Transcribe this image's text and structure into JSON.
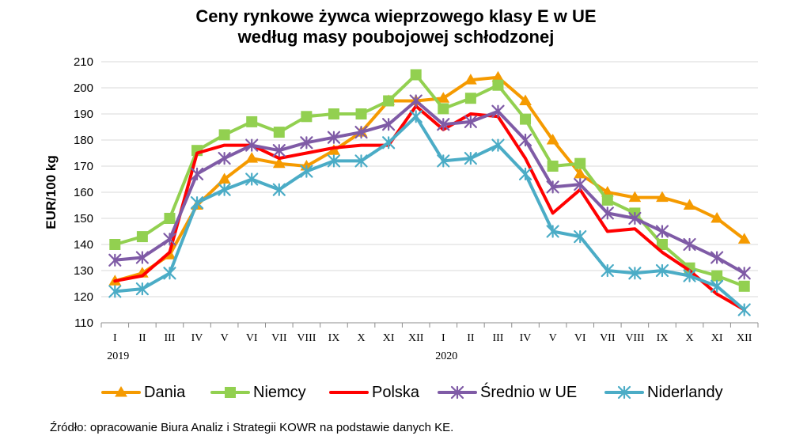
{
  "chart_data": {
    "type": "line",
    "title_line1": "Ceny rynkowe żywca wieprzowego klasy E w UE",
    "title_line2": "według masy poubojowej schłodzonej",
    "ylabel": "EUR/100 kg",
    "xlabel": "",
    "ylim": [
      110,
      210
    ],
    "yticks": [
      110,
      120,
      130,
      140,
      150,
      160,
      170,
      180,
      190,
      200,
      210
    ],
    "categories": [
      "I",
      "II",
      "III",
      "IV",
      "V",
      "VI",
      "VII",
      "VIII",
      "IX",
      "X",
      "XI",
      "XII",
      "I",
      "II",
      "III",
      "IV",
      "V",
      "VI",
      "VII",
      "VIII",
      "IX",
      "X",
      "XI",
      "XII"
    ],
    "year_labels": [
      {
        "index": 0,
        "label": "2019"
      },
      {
        "index": 12,
        "label": "2020"
      }
    ],
    "grid": "horizontal",
    "legend_position": "bottom",
    "series": [
      {
        "name": "Dania",
        "color": "#F59A00",
        "marker": "triangle",
        "values": [
          126,
          129,
          136,
          155,
          165,
          173,
          171,
          170,
          176,
          183,
          195,
          195,
          196,
          203,
          204,
          195,
          180,
          167,
          160,
          158,
          158,
          155,
          150,
          142
        ]
      },
      {
        "name": "Niemcy",
        "color": "#92D050",
        "marker": "square",
        "values": [
          140,
          143,
          150,
          176,
          182,
          187,
          183,
          189,
          190,
          190,
          195,
          205,
          192,
          196,
          201,
          188,
          170,
          171,
          157,
          152,
          140,
          131,
          128,
          124
        ]
      },
      {
        "name": "Polska",
        "color": "#FF0000",
        "marker": "none",
        "values": [
          126,
          128,
          137,
          175,
          178,
          178,
          173,
          175,
          177,
          178,
          178,
          193,
          184,
          190,
          189,
          173,
          152,
          161,
          145,
          146,
          137,
          130,
          121,
          115
        ]
      },
      {
        "name": "Średnio w UE",
        "color": "#7F5BA6",
        "marker": "star",
        "values": [
          134,
          135,
          142,
          167,
          173,
          178,
          176,
          179,
          181,
          183,
          186,
          195,
          186,
          187,
          191,
          180,
          162,
          163,
          152,
          150,
          145,
          140,
          135,
          129
        ]
      },
      {
        "name": "Niderlandy",
        "color": "#4BACC6",
        "marker": "star",
        "values": [
          122,
          123,
          129,
          156,
          161,
          165,
          161,
          168,
          172,
          172,
          179,
          189,
          172,
          173,
          178,
          167,
          145,
          143,
          130,
          129,
          130,
          128,
          124,
          115
        ]
      }
    ]
  },
  "source_text": "Źródło: opracowanie Biura Analiz i Strategii KOWR na podstawie danych KE."
}
